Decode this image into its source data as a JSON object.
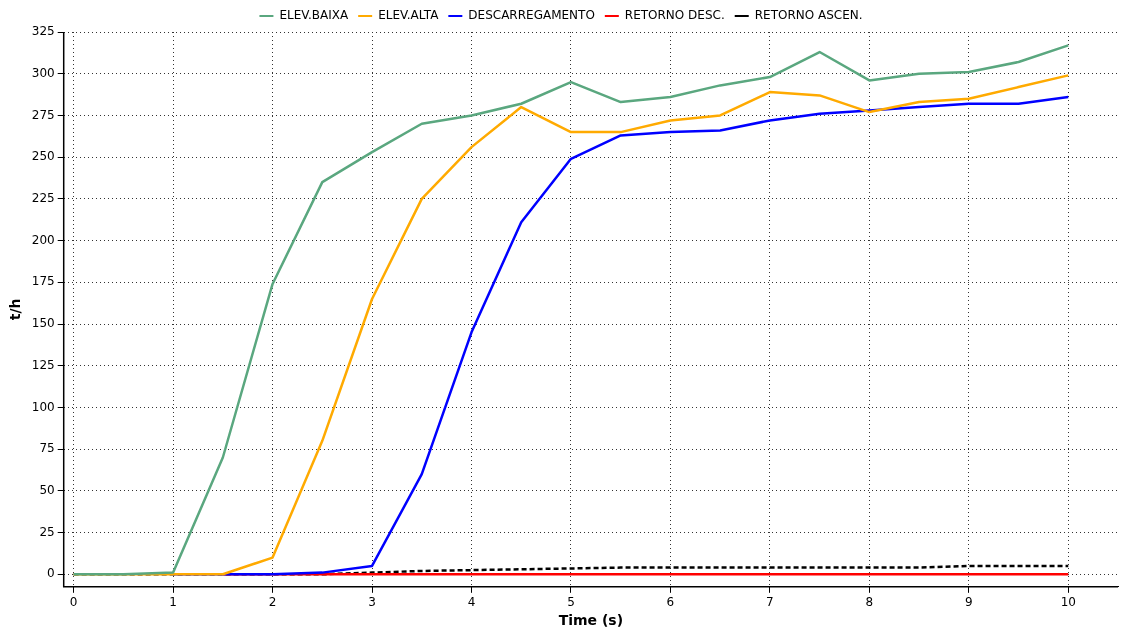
{
  "chart_data": {
    "type": "line",
    "xlabel": "Time (s)",
    "ylabel": "t/h",
    "x": [
      0,
      0.5,
      1,
      1.5,
      2,
      2.5,
      3,
      3.5,
      4,
      4.5,
      5,
      5.5,
      6,
      6.5,
      7,
      7.5,
      8,
      8.5,
      9,
      9.5,
      10
    ],
    "series": [
      {
        "name": "ELEV.BAIXA",
        "color": "#5aa77f",
        "values": [
          0,
          0,
          1,
          70,
          174,
          235,
          253,
          270,
          275,
          282,
          295,
          283,
          286,
          293,
          298,
          313,
          296,
          300,
          301,
          307,
          317
        ]
      },
      {
        "name": "ELEV.ALTA",
        "color": "#ffaa00",
        "values": [
          0,
          0,
          0,
          0,
          10,
          80,
          165,
          225,
          256,
          280,
          265,
          265,
          272,
          275,
          289,
          287,
          277,
          283,
          285,
          292,
          299
        ]
      },
      {
        "name": "DESCARREGAMENTO",
        "color": "#0000ff",
        "values": [
          null,
          null,
          0,
          0,
          0,
          1,
          5,
          60,
          145,
          211,
          249,
          263,
          265,
          266,
          272,
          276,
          278,
          280,
          282,
          282,
          286
        ]
      },
      {
        "name": "RETORNO DESC.",
        "color": "#ff0000",
        "values": [
          null,
          null,
          null,
          0,
          0,
          0,
          0,
          0,
          0,
          0,
          0,
          0,
          0,
          0,
          0,
          0,
          0,
          0,
          0,
          0,
          0
        ]
      },
      {
        "name": "RETORNO ASCEN.",
        "color": "#000000",
        "line_style": "dashed",
        "values": [
          0,
          0,
          0,
          0,
          0,
          0,
          1,
          2,
          2.5,
          3,
          3.5,
          4,
          4,
          4,
          4,
          4,
          4,
          4,
          5,
          5,
          5
        ]
      }
    ],
    "xlim": [
      -0.1,
      10.5
    ],
    "xticks": [
      0,
      1,
      2,
      3,
      4,
      5,
      6,
      7,
      8,
      9,
      10
    ],
    "ylim": [
      -7.5,
      325
    ],
    "yticks": [
      0,
      25,
      50,
      75,
      100,
      125,
      150,
      175,
      200,
      225,
      250,
      275,
      300,
      325
    ],
    "grid": true,
    "legend": "top",
    "marker": "none",
    "line_style": "solid"
  }
}
